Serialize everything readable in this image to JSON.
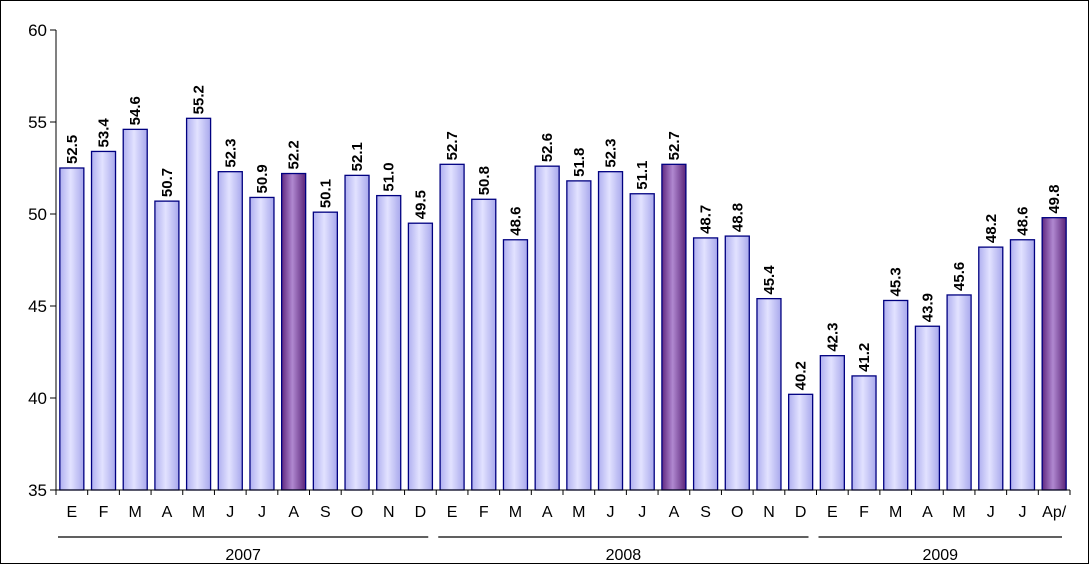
{
  "chart_data": {
    "type": "bar",
    "title": "",
    "xlabel": "",
    "ylabel": "",
    "ylim": [
      35,
      60
    ],
    "yticks": [
      35,
      40,
      45,
      50,
      55,
      60
    ],
    "grid": false,
    "legend": "none",
    "categories": [
      "E",
      "F",
      "M",
      "A",
      "M",
      "J",
      "J",
      "A",
      "S",
      "O",
      "N",
      "D",
      "E",
      "F",
      "M",
      "A",
      "M",
      "J",
      "J",
      "A",
      "S",
      "O",
      "N",
      "D",
      "E",
      "F",
      "M",
      "A",
      "M",
      "J",
      "J",
      "Ap/"
    ],
    "values": [
      52.5,
      53.4,
      54.6,
      50.7,
      55.2,
      52.3,
      50.9,
      52.2,
      50.1,
      52.1,
      51.0,
      49.5,
      52.7,
      50.8,
      48.6,
      52.6,
      51.8,
      52.3,
      51.1,
      52.7,
      48.7,
      48.8,
      45.4,
      40.2,
      42.3,
      41.2,
      45.3,
      43.9,
      45.6,
      48.2,
      48.6,
      49.8
    ],
    "data_labels": [
      "52.5",
      "53.4",
      "54.6",
      "50.7",
      "55.2",
      "52.3",
      "50.9",
      "52.2",
      "50.1",
      "52.1",
      "51.0",
      "49.5",
      "52.7",
      "50.8",
      "48.6",
      "52.6",
      "51.8",
      "52.3",
      "51.1",
      "52.7",
      "48.7",
      "48.8",
      "45.4",
      "40.2",
      "42.3",
      "41.2",
      "45.3",
      "43.9",
      "45.6",
      "48.2",
      "48.6",
      "49.8"
    ],
    "highlighted_indices": [
      7,
      19,
      31
    ],
    "groups": [
      {
        "label": "2007",
        "start": 0,
        "end": 11
      },
      {
        "label": "2008",
        "start": 12,
        "end": 23
      },
      {
        "label": "2009",
        "start": 24,
        "end": 31
      }
    ],
    "colors": {
      "bar_fill": "#ccccff",
      "bar_highlight": "#8040a0",
      "bar_stroke": "#000080"
    }
  }
}
